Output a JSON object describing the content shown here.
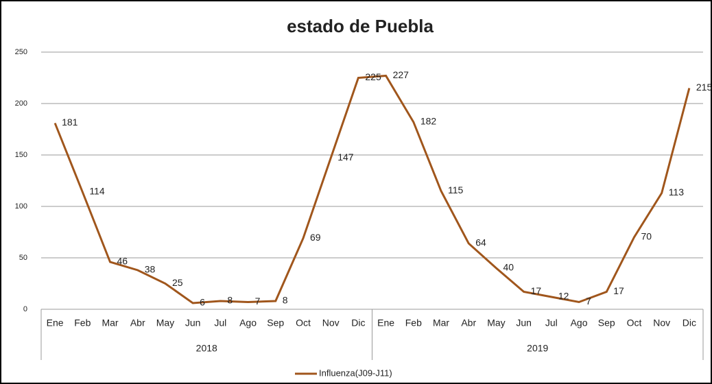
{
  "chart_data": {
    "type": "line",
    "title": "estado de Puebla",
    "categories": [
      "Ene",
      "Feb",
      "Mar",
      "Abr",
      "May",
      "Jun",
      "Jul",
      "Ago",
      "Sep",
      "Oct",
      "Nov",
      "Dic",
      "Ene",
      "Feb",
      "Mar",
      "Abr",
      "May",
      "Jun",
      "Jul",
      "Ago",
      "Sep",
      "Oct",
      "Nov",
      "Dic"
    ],
    "category_groups": [
      "2018",
      "2019"
    ],
    "series": [
      {
        "name": "Influenza(J09-J11)",
        "color": "#a0561c",
        "values": [
          181,
          114,
          46,
          38,
          25,
          6,
          8,
          7,
          8,
          69,
          147,
          225,
          227,
          182,
          115,
          64,
          40,
          17,
          12,
          7,
          17,
          70,
          113,
          215
        ]
      }
    ],
    "ylim": [
      0,
      250
    ],
    "yticks": [
      0,
      50,
      100,
      150,
      200,
      250
    ],
    "grid": true,
    "legend": "bottom"
  }
}
